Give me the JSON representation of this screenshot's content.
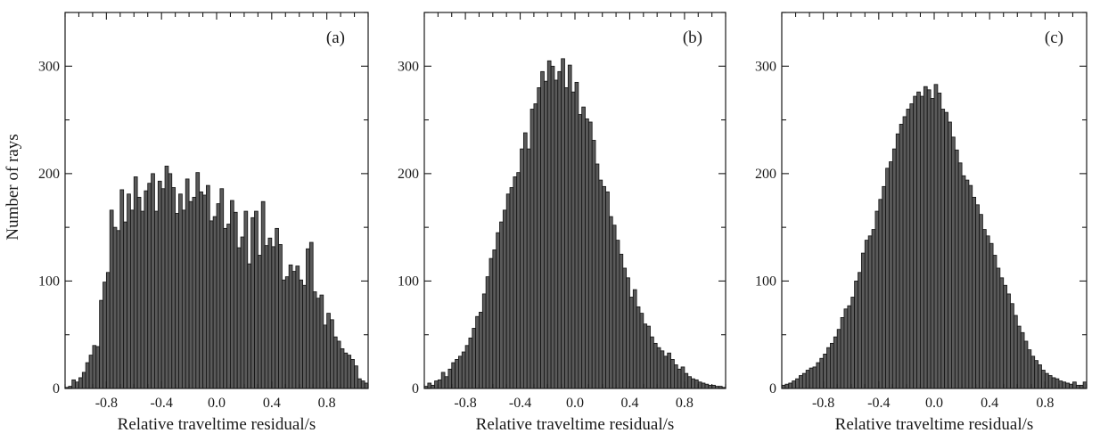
{
  "figure": {
    "y_axis_title": "Number of rays",
    "bar_fill": "#5a5a5a",
    "bar_edge": "#111111"
  },
  "chart_data": [
    {
      "type": "bar",
      "panel_label": "(a)",
      "xlabel": "Relative traveltime residual/s",
      "ylabel": "Number of rays",
      "xlim": [
        -1.1,
        1.1
      ],
      "ylim": [
        0,
        350
      ],
      "bin_width": 0.025,
      "x_ticks": [
        -0.8,
        -0.4,
        0.0,
        0.4,
        0.8
      ],
      "x_tick_labels": [
        "-0.8",
        "-0.4",
        "0.0",
        "0.4",
        "0.8"
      ],
      "y_ticks": [
        0,
        100,
        200,
        300
      ],
      "y_tick_labels": [
        "0",
        "100",
        "200",
        "300"
      ],
      "bin_start": -1.1,
      "values": [
        1,
        2,
        8,
        6,
        10,
        15,
        24,
        31,
        40,
        39,
        82,
        99,
        108,
        166,
        150,
        147,
        185,
        155,
        181,
        166,
        197,
        178,
        165,
        184,
        191,
        200,
        165,
        193,
        186,
        207,
        200,
        187,
        163,
        181,
        166,
        195,
        174,
        178,
        201,
        183,
        180,
        189,
        156,
        160,
        172,
        186,
        149,
        153,
        175,
        164,
        131,
        141,
        165,
        116,
        159,
        165,
        124,
        174,
        133,
        140,
        132,
        149,
        134,
        101,
        104,
        115,
        109,
        114,
        101,
        96,
        130,
        136,
        90,
        84,
        87,
        59,
        70,
        64,
        48,
        44,
        37,
        33,
        31,
        27,
        21,
        9,
        7,
        5
      ]
    },
    {
      "type": "bar",
      "panel_label": "(b)",
      "xlabel": "Relative traveltime residual/s",
      "xlim": [
        -1.1,
        1.1
      ],
      "ylim": [
        0,
        350
      ],
      "bin_width": 0.025,
      "x_ticks": [
        -0.8,
        -0.4,
        0.0,
        0.4,
        0.8
      ],
      "x_tick_labels": [
        "-0.8",
        "-0.4",
        "0.0",
        "0.4",
        "0.8"
      ],
      "y_ticks": [
        0,
        100,
        200,
        300
      ],
      "y_tick_labels": [
        "0",
        "100",
        "200",
        "300"
      ],
      "bin_start": -1.1,
      "values": [
        2,
        5,
        3,
        7,
        8,
        15,
        11,
        18,
        24,
        27,
        30,
        34,
        40,
        47,
        56,
        67,
        71,
        88,
        104,
        121,
        129,
        145,
        155,
        166,
        181,
        187,
        197,
        201,
        223,
        238,
        223,
        260,
        265,
        280,
        295,
        286,
        305,
        300,
        287,
        295,
        307,
        280,
        301,
        276,
        285,
        255,
        262,
        251,
        248,
        231,
        209,
        194,
        188,
        183,
        160,
        152,
        138,
        125,
        112,
        103,
        85,
        92,
        76,
        70,
        60,
        58,
        48,
        42,
        38,
        35,
        30,
        33,
        27,
        22,
        18,
        20,
        14,
        11,
        9,
        8,
        6,
        5,
        4,
        3,
        3,
        2,
        2,
        1
      ]
    },
    {
      "type": "bar",
      "panel_label": "(c)",
      "xlabel": "Relative traveltime residual/s",
      "xlim": [
        -1.1,
        1.1
      ],
      "ylim": [
        0,
        350
      ],
      "bin_width": 0.025,
      "x_ticks": [
        -0.8,
        -0.4,
        0.0,
        0.4,
        0.8
      ],
      "x_tick_labels": [
        "-0.8",
        "-0.4",
        "0.0",
        "0.4",
        "0.8"
      ],
      "y_ticks": [
        0,
        100,
        200,
        300
      ],
      "y_tick_labels": [
        "0",
        "100",
        "200",
        "300"
      ],
      "bin_start": -1.1,
      "values": [
        3,
        4,
        5,
        7,
        9,
        12,
        14,
        17,
        19,
        20,
        24,
        28,
        32,
        38,
        42,
        48,
        55,
        66,
        74,
        77,
        85,
        100,
        108,
        126,
        138,
        142,
        148,
        165,
        176,
        188,
        205,
        211,
        223,
        237,
        246,
        253,
        260,
        265,
        272,
        276,
        272,
        281,
        278,
        270,
        283,
        275,
        260,
        257,
        248,
        234,
        222,
        210,
        198,
        194,
        189,
        178,
        171,
        162,
        148,
        142,
        135,
        124,
        112,
        103,
        96,
        88,
        79,
        68,
        58,
        52,
        44,
        36,
        30,
        26,
        22,
        17,
        14,
        12,
        10,
        9,
        7,
        6,
        5,
        4,
        6,
        3,
        3,
        6
      ]
    }
  ]
}
